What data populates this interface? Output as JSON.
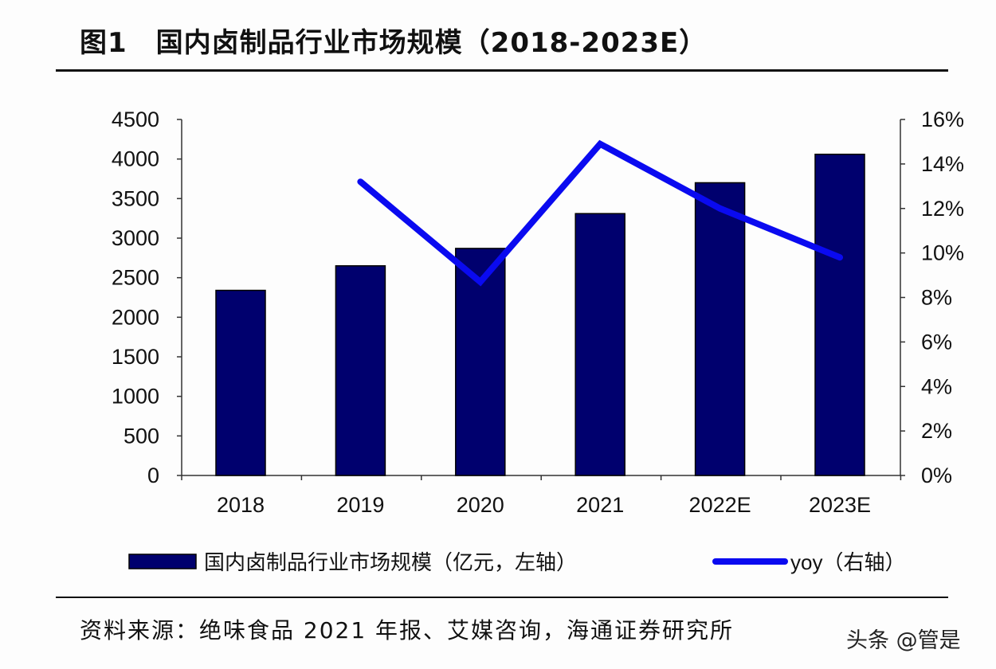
{
  "title_number": "图1",
  "title_text": "国内卤制品行业市场规模（2018-2023E）",
  "source": "资料来源：绝味食品 2021 年报、艾媒咨询，海通证券研究所",
  "watermark": "头条 @管是",
  "chart_data": {
    "type": "bar+line",
    "categories": [
      "2018",
      "2019",
      "2020",
      "2021",
      "2022E",
      "2023E"
    ],
    "series": [
      {
        "name": "国内卤制品行业市场规模（亿元，左轴）",
        "type": "bar",
        "axis": "left",
        "color": "#00006e",
        "values": [
          2340,
          2650,
          2870,
          3310,
          3700,
          4060
        ]
      },
      {
        "name": "yoy（右轴）",
        "type": "line",
        "axis": "right",
        "color": "#0a0af0",
        "values": [
          null,
          13.2,
          8.7,
          14.9,
          12.0,
          9.8
        ]
      }
    ],
    "left_axis": {
      "min": 0,
      "max": 4500,
      "ticks": [
        "0",
        "500",
        "1000",
        "1500",
        "2000",
        "2500",
        "3000",
        "3500",
        "4000",
        "4500"
      ]
    },
    "right_axis": {
      "min": 0,
      "max": 16,
      "ticks": [
        "0%",
        "2%",
        "4%",
        "6%",
        "8%",
        "10%",
        "12%",
        "14%",
        "16%"
      ]
    },
    "grid": false,
    "legend_position": "bottom"
  }
}
